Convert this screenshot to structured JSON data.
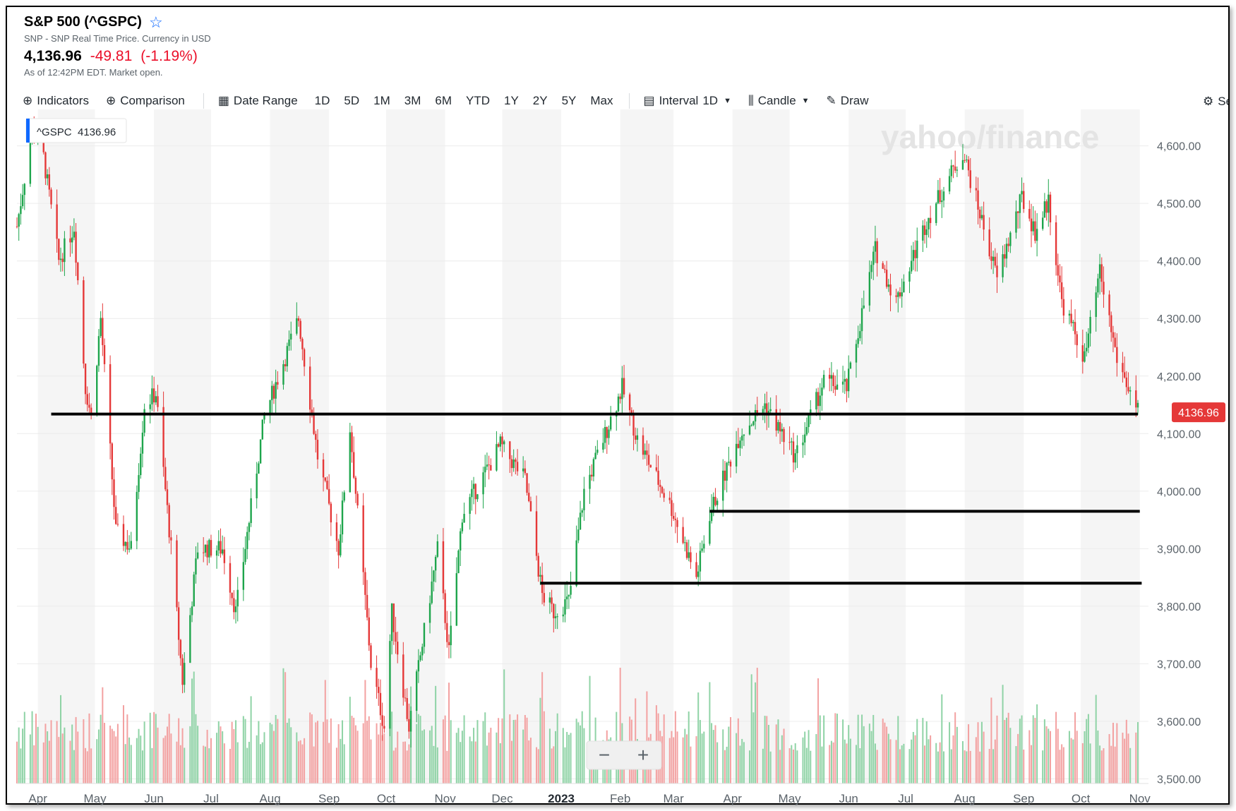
{
  "header": {
    "title": "S&P 500 (^GSPC)",
    "subtitle": "SNP - SNP Real Time Price. Currency in USD",
    "price": "4,136.96",
    "change": "-49.81",
    "change_pct": "(-1.19%)",
    "as_of": "As of 12:42PM EDT. Market open."
  },
  "toolbar": {
    "indicators": "Indicators",
    "comparison": "Comparison",
    "date_range": "Date Range",
    "ranges": [
      "1D",
      "5D",
      "1M",
      "3M",
      "6M",
      "YTD",
      "1Y",
      "2Y",
      "5Y",
      "Max"
    ],
    "interval_label": "Interval",
    "interval_value": "1D",
    "candle": "Candle",
    "draw": "Draw",
    "settings_partial": "Se"
  },
  "colors": {
    "up": "#1ea54c",
    "down": "#e53838",
    "accent": "#0f69ff",
    "line": "#000000"
  },
  "chart_data": {
    "type": "candlestick",
    "series_name": "^GSPC",
    "legend_label": "^GSPC",
    "legend_value": "4136.96",
    "last_price_label": "4136.96",
    "watermark": "yahoo/finance",
    "ylim": [
      3470,
      4640
    ],
    "y_ticks": [
      4600,
      4500,
      4400,
      4300,
      4200,
      4100,
      4000,
      3900,
      3800,
      3700,
      3600,
      3500
    ],
    "y_tick_labels": [
      "4,600.00",
      "4,500.00",
      "4,400.00",
      "4,300.00",
      "4,200.00",
      "4,100.00",
      "4,000.00",
      "3,900.00",
      "3,800.00",
      "3,700.00",
      "3,600.00",
      "3,500.00"
    ],
    "x_labels": [
      "Apr",
      "May",
      "Jun",
      "Jul",
      "Aug",
      "Sep",
      "Oct",
      "Nov",
      "Dec",
      "2023",
      "Feb",
      "Mar",
      "Apr",
      "May",
      "Jun",
      "Jul",
      "Aug",
      "Sep",
      "Oct",
      "Nov"
    ],
    "x_tick_months": [
      "2022-04",
      "2022-05",
      "2022-06",
      "2022-07",
      "2022-08",
      "2022-09",
      "2022-10",
      "2022-11",
      "2022-12",
      "2023-01",
      "2023-02",
      "2023-03",
      "2023-04",
      "2023-05",
      "2023-06",
      "2023-07",
      "2023-08",
      "2023-09",
      "2023-10",
      "2023-11"
    ],
    "x_range": [
      "2022-03-21",
      "2023-10-31"
    ],
    "close_path": [
      {
        "date": "2022-03-21",
        "close": 4460
      },
      {
        "date": "2022-03-29",
        "close": 4630
      },
      {
        "date": "2022-04-04",
        "close": 4580
      },
      {
        "date": "2022-04-12",
        "close": 4400
      },
      {
        "date": "2022-04-20",
        "close": 4460
      },
      {
        "date": "2022-04-26",
        "close": 4180
      },
      {
        "date": "2022-04-29",
        "close": 4130
      },
      {
        "date": "2022-05-04",
        "close": 4300
      },
      {
        "date": "2022-05-12",
        "close": 3930
      },
      {
        "date": "2022-05-20",
        "close": 3900
      },
      {
        "date": "2022-05-27",
        "close": 4150
      },
      {
        "date": "2022-06-02",
        "close": 4170
      },
      {
        "date": "2022-06-10",
        "close": 3900
      },
      {
        "date": "2022-06-16",
        "close": 3670
      },
      {
        "date": "2022-06-24",
        "close": 3900
      },
      {
        "date": "2022-07-07",
        "close": 3900
      },
      {
        "date": "2022-07-14",
        "close": 3790
      },
      {
        "date": "2022-07-29",
        "close": 4130
      },
      {
        "date": "2022-08-16",
        "close": 4300
      },
      {
        "date": "2022-08-26",
        "close": 4060
      },
      {
        "date": "2022-09-06",
        "close": 3900
      },
      {
        "date": "2022-09-12",
        "close": 4110
      },
      {
        "date": "2022-09-23",
        "close": 3700
      },
      {
        "date": "2022-09-30",
        "close": 3590
      },
      {
        "date": "2022-10-04",
        "close": 3790
      },
      {
        "date": "2022-10-13",
        "close": 3590
      },
      {
        "date": "2022-10-28",
        "close": 3900
      },
      {
        "date": "2022-11-03",
        "close": 3720
      },
      {
        "date": "2022-11-10",
        "close": 3960
      },
      {
        "date": "2022-11-30",
        "close": 4080
      },
      {
        "date": "2022-12-13",
        "close": 4020
      },
      {
        "date": "2022-12-22",
        "close": 3820
      },
      {
        "date": "2022-12-28",
        "close": 3790
      },
      {
        "date": "2023-01-05",
        "close": 3810
      },
      {
        "date": "2023-01-13",
        "close": 4000
      },
      {
        "date": "2023-02-02",
        "close": 4180
      },
      {
        "date": "2023-02-10",
        "close": 4090
      },
      {
        "date": "2023-02-28",
        "close": 3970
      },
      {
        "date": "2023-03-13",
        "close": 3850
      },
      {
        "date": "2023-03-20",
        "close": 3960
      },
      {
        "date": "2023-04-05",
        "close": 4100
      },
      {
        "date": "2023-04-18",
        "close": 4150
      },
      {
        "date": "2023-05-04",
        "close": 4060
      },
      {
        "date": "2023-05-19",
        "close": 4190
      },
      {
        "date": "2023-05-31",
        "close": 4180
      },
      {
        "date": "2023-06-15",
        "close": 4420
      },
      {
        "date": "2023-06-26",
        "close": 4330
      },
      {
        "date": "2023-07-12",
        "close": 4470
      },
      {
        "date": "2023-07-31",
        "close": 4590
      },
      {
        "date": "2023-08-10",
        "close": 4470
      },
      {
        "date": "2023-08-18",
        "close": 4370
      },
      {
        "date": "2023-08-31",
        "close": 4510
      },
      {
        "date": "2023-09-07",
        "close": 4450
      },
      {
        "date": "2023-09-14",
        "close": 4505
      },
      {
        "date": "2023-09-21",
        "close": 4330
      },
      {
        "date": "2023-10-03",
        "close": 4230
      },
      {
        "date": "2023-10-11",
        "close": 4380
      },
      {
        "date": "2023-10-20",
        "close": 4230
      },
      {
        "date": "2023-10-31",
        "close": 4137
      }
    ],
    "horizontal_lines": [
      {
        "price": 4134,
        "from": "2022-04-08",
        "to": "2023-10-31"
      },
      {
        "price": 3965,
        "from": "2023-03-20",
        "to": "2023-11-01"
      },
      {
        "price": 3840,
        "from": "2022-12-21",
        "to": "2023-11-02"
      }
    ],
    "zoom_controls": [
      "−",
      "+"
    ]
  }
}
